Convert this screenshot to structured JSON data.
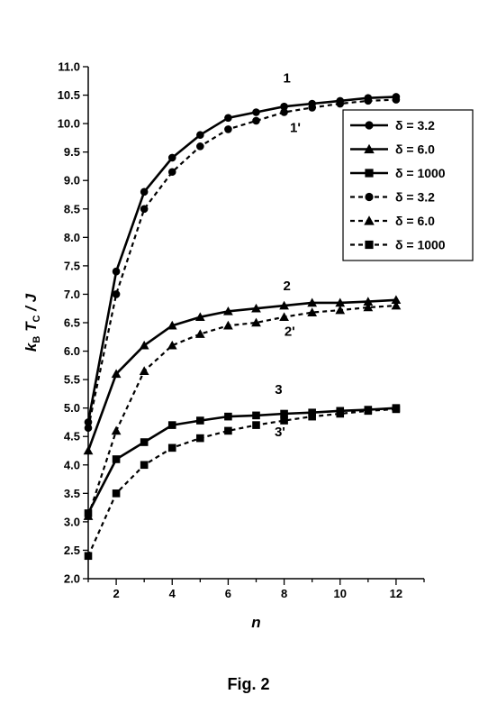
{
  "chart_data": {
    "type": "line",
    "xlabel": "n",
    "ylabel_parts": {
      "k": "k",
      "b": "B",
      "t": "T",
      "c": "C",
      "slash_j": " / J"
    },
    "xlim": [
      1,
      13
    ],
    "ylim": [
      2.0,
      11.0
    ],
    "x_ticks": [
      2,
      4,
      6,
      8,
      10,
      12
    ],
    "y_ticks": [
      "2.0",
      "2.5",
      "3.0",
      "3.5",
      "4.0",
      "4.5",
      "5.0",
      "5.5",
      "6.0",
      "6.5",
      "7.0",
      "7.5",
      "8.0",
      "8.5",
      "9.0",
      "9.5",
      "10.0",
      "10.5",
      "11.0"
    ],
    "x": [
      1,
      2,
      3,
      4,
      5,
      6,
      7,
      8,
      9,
      10,
      11,
      12
    ],
    "series": [
      {
        "name": "δ = 3.2",
        "marker": "circle",
        "line": "solid",
        "values": [
          4.75,
          7.4,
          8.8,
          9.4,
          9.8,
          10.1,
          10.2,
          10.3,
          10.35,
          10.4,
          10.45,
          10.47
        ]
      },
      {
        "name": "δ = 6.0",
        "marker": "triangle",
        "line": "solid",
        "values": [
          4.25,
          5.6,
          6.1,
          6.45,
          6.6,
          6.7,
          6.75,
          6.8,
          6.85,
          6.85,
          6.87,
          6.9
        ]
      },
      {
        "name": "δ = 1000",
        "marker": "square",
        "line": "solid",
        "values": [
          3.15,
          4.1,
          4.4,
          4.7,
          4.78,
          4.85,
          4.87,
          4.9,
          4.92,
          4.95,
          4.97,
          5.0
        ]
      },
      {
        "name": "δ = 3.2",
        "marker": "circle",
        "line": "dashed",
        "values": [
          4.65,
          7.0,
          8.5,
          9.15,
          9.6,
          9.9,
          10.05,
          10.2,
          10.28,
          10.35,
          10.4,
          10.42
        ]
      },
      {
        "name": "δ = 6.0",
        "marker": "triangle",
        "line": "dashed",
        "values": [
          3.1,
          4.6,
          5.65,
          6.1,
          6.3,
          6.45,
          6.5,
          6.6,
          6.68,
          6.72,
          6.77,
          6.8
        ]
      },
      {
        "name": "δ = 1000",
        "marker": "square",
        "line": "dashed",
        "values": [
          2.4,
          3.5,
          4.0,
          4.3,
          4.47,
          4.6,
          4.7,
          4.78,
          4.85,
          4.9,
          4.95,
          4.98
        ]
      }
    ],
    "curve_labels": [
      {
        "text": "1",
        "x": 8.1,
        "y": 10.72
      },
      {
        "text": "1'",
        "x": 8.4,
        "y": 9.85
      },
      {
        "text": "2",
        "x": 8.1,
        "y": 7.07
      },
      {
        "text": "2'",
        "x": 8.2,
        "y": 6.27
      },
      {
        "text": "3",
        "x": 7.8,
        "y": 5.25
      },
      {
        "text": "3'",
        "x": 7.85,
        "y": 4.5
      }
    ],
    "legend_position": "upper-right",
    "grid": false
  },
  "caption": "Fig. 2"
}
